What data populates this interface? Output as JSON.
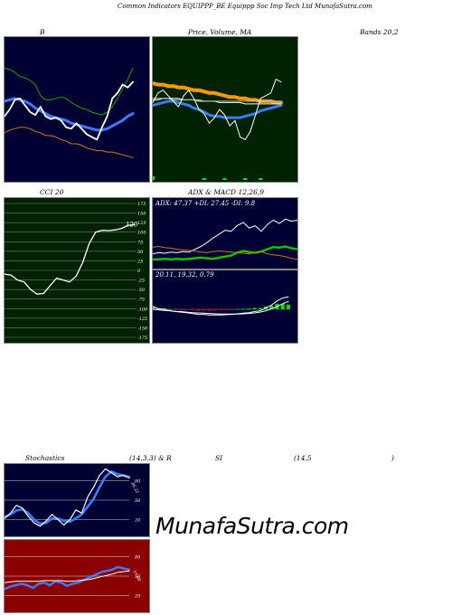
{
  "header": {
    "title": "Common Indicators EQUIPPP_BE Equippp Soc Imp Tech Ltd MunafaSutra.com"
  },
  "labels": {
    "bb": "B",
    "price_ma": "Price, Volume, MA",
    "bands": "Bands 20,2",
    "cci": "CCI 20",
    "adx_macd": "ADX  & MACD 12,26,9",
    "stoch_left": "Stochastics",
    "stoch_mid": "(14,3,3) & R",
    "rsi": "SI",
    "rsi_params": "(14,5",
    "rsi_close": ")"
  },
  "brand": "MunafaSutra.com",
  "colors": {
    "navy_bg": "#000033",
    "green_bg": "#002200",
    "olive_bg": "#002200",
    "red_bg": "#8b0000",
    "blue": "#3a7cff",
    "green": "#00cc00",
    "orange": "#c87820",
    "white": "#ffffff",
    "grid": "#7a7a7a"
  },
  "chart_data": [
    {
      "id": "bollinger",
      "type": "line",
      "ylim": [
        0,
        100
      ],
      "series": [
        {
          "role": "upper",
          "color": "#00aa00",
          "values": [
            80,
            79,
            77,
            74,
            73,
            71,
            68,
            60,
            57,
            57,
            58,
            59,
            58,
            55,
            53,
            51,
            50,
            48,
            47,
            46,
            48,
            52,
            58,
            65,
            72,
            80
          ]
        },
        {
          "role": "middle",
          "color": "#3a7cff",
          "values": [
            56,
            57,
            58,
            57,
            56,
            54,
            51,
            49,
            47,
            45,
            44,
            43,
            42,
            40,
            39,
            38,
            37,
            36,
            35,
            35,
            36,
            38,
            40,
            42,
            45,
            47
          ]
        },
        {
          "role": "lower",
          "color": "#c87820",
          "values": [
            33,
            35,
            36,
            37,
            37,
            36,
            34,
            33,
            31,
            31,
            30,
            28,
            27,
            25,
            25,
            24,
            22,
            21,
            20,
            20,
            19,
            19,
            18,
            17,
            16,
            15
          ]
        },
        {
          "role": "price",
          "color": "#ffffff",
          "values": [
            45,
            50,
            57,
            58,
            53,
            48,
            46,
            52,
            45,
            43,
            44,
            42,
            37,
            36,
            40,
            36,
            32,
            30,
            28,
            37,
            45,
            58,
            62,
            68,
            66,
            70
          ]
        }
      ]
    },
    {
      "id": "price_volume_ma",
      "type": "line",
      "ylim": [
        0,
        100
      ],
      "series": [
        {
          "role": "ma_orange",
          "color": "#ff9900",
          "values": [
            69,
            68,
            68,
            67,
            67,
            66,
            66,
            65,
            64,
            64,
            63,
            62,
            62,
            61,
            60,
            59,
            59,
            58,
            58,
            57,
            57,
            56,
            56,
            56,
            55,
            55
          ]
        },
        {
          "role": "ma_blue",
          "color": "#3a7cff",
          "values": [
            53,
            54,
            55,
            56,
            56,
            55,
            54,
            53,
            51,
            50,
            48,
            46,
            45,
            45,
            44,
            44,
            44,
            44,
            45,
            46,
            47,
            49,
            50,
            51,
            52,
            53
          ]
        },
        {
          "role": "ma_white",
          "color": "#ffffff",
          "values": [
            57,
            57,
            58,
            58,
            58,
            58,
            57,
            57,
            57,
            56,
            56,
            56,
            56,
            55,
            55,
            55,
            55,
            55,
            54,
            54,
            54,
            54,
            54,
            54,
            54,
            54
          ]
        },
        {
          "role": "ma_gray",
          "color": "#bbbbbb",
          "values": [
            58,
            58,
            58,
            58,
            57,
            57,
            57,
            57,
            57,
            57,
            56,
            56,
            56,
            56,
            56,
            56,
            56,
            56,
            56,
            56,
            56,
            56,
            56,
            56,
            56,
            56
          ]
        },
        {
          "role": "price",
          "color": "#ffffff",
          "values": [
            55,
            62,
            64,
            60,
            56,
            52,
            60,
            64,
            58,
            50,
            47,
            40,
            44,
            50,
            46,
            38,
            42,
            30,
            28,
            34,
            46,
            58,
            60,
            62,
            72,
            70
          ]
        }
      ],
      "volume": [
        2,
        0,
        0,
        0,
        0,
        0,
        0,
        0,
        0,
        0,
        1,
        0,
        0,
        0,
        1,
        0,
        0,
        0,
        1,
        0,
        0,
        1,
        0,
        0,
        0,
        0
      ]
    },
    {
      "id": "cci",
      "type": "line",
      "ylim": [
        -175,
        175
      ],
      "ticks": [
        175,
        150,
        125,
        100,
        75,
        50,
        25,
        0,
        -25,
        -50,
        -75,
        -100,
        -125,
        -150,
        -175
      ],
      "last_value": "120",
      "series": [
        {
          "role": "cci",
          "color": "#ffffff",
          "values": [
            -10,
            -12,
            -25,
            -30,
            -50,
            -62,
            -60,
            -40,
            -20,
            -25,
            -30,
            -15,
            20,
            70,
            100,
            105,
            104,
            106,
            110,
            118,
            120
          ]
        }
      ]
    },
    {
      "id": "adx",
      "type": "line",
      "ylim": [
        0,
        100
      ],
      "readout": "ADX: 47.37  +DI: 27.45  -DI: 9.8",
      "series": [
        {
          "role": "adx",
          "color": "#ffffff",
          "values": [
            20,
            22,
            21,
            23,
            22,
            24,
            23,
            28,
            33,
            40,
            48,
            55,
            62,
            60,
            70,
            76,
            66,
            70,
            60,
            72,
            80,
            74,
            82,
            78,
            80
          ]
        },
        {
          "role": "plus_di",
          "color": "#00cc00",
          "values": [
            10,
            10,
            11,
            10,
            11,
            10,
            11,
            12,
            13,
            12,
            11,
            13,
            15,
            17,
            22,
            25,
            23,
            22,
            24,
            28,
            32,
            31,
            33,
            30,
            28
          ]
        },
        {
          "role": "minus_di",
          "color": "#c87820",
          "values": [
            32,
            33,
            31,
            30,
            28,
            27,
            26,
            25,
            23,
            22,
            24,
            25,
            24,
            23,
            22,
            21,
            20,
            22,
            24,
            20,
            18,
            17,
            15,
            12,
            10
          ]
        }
      ]
    },
    {
      "id": "macd",
      "type": "line",
      "ylim": [
        -1,
        1
      ],
      "readout": "20.11,  19.32,  0.79",
      "series": [
        {
          "role": "macd",
          "color": "#ffffff",
          "values": [
            0.1,
            0.02,
            0.0,
            -0.05,
            -0.08,
            -0.1,
            -0.12,
            -0.15,
            -0.18,
            -0.18,
            -0.2,
            -0.2,
            -0.2,
            -0.19,
            -0.18,
            -0.16,
            -0.14,
            -0.12,
            -0.08,
            -0.05,
            0.05,
            0.15,
            0.3,
            0.4,
            0.45
          ]
        },
        {
          "role": "signal",
          "color": "#ffffff",
          "values": [
            0.0,
            -0.02,
            -0.04,
            -0.05,
            -0.07,
            -0.08,
            -0.1,
            -0.12,
            -0.13,
            -0.14,
            -0.15,
            -0.16,
            -0.17,
            -0.17,
            -0.17,
            -0.17,
            -0.16,
            -0.15,
            -0.13,
            -0.1,
            -0.05,
            0.02,
            0.1,
            0.2,
            0.28
          ]
        },
        {
          "role": "histogram",
          "values": [
            0.1,
            0.04,
            0.04,
            0.0,
            -0.01,
            -0.02,
            -0.02,
            -0.03,
            -0.05,
            -0.04,
            -0.05,
            -0.04,
            -0.03,
            -0.02,
            -0.01,
            0.01,
            0.02,
            0.03,
            0.05,
            0.05,
            0.1,
            0.13,
            0.2,
            0.2,
            0.17
          ]
        }
      ]
    },
    {
      "id": "stochastics",
      "type": "line",
      "ylim": [
        0,
        100
      ],
      "ticks": [
        80,
        50,
        20
      ],
      "last_value": "86.22",
      "series": [
        {
          "role": "k",
          "color": "#ffffff",
          "values": [
            22,
            30,
            42,
            38,
            25,
            15,
            10,
            18,
            28,
            20,
            12,
            20,
            35,
            30,
            55,
            70,
            88,
            98,
            92,
            86,
            88,
            84
          ]
        },
        {
          "role": "d",
          "color": "#3a7cff",
          "values": [
            24,
            28,
            34,
            36,
            30,
            20,
            14,
            15,
            22,
            22,
            18,
            17,
            22,
            28,
            40,
            52,
            70,
            86,
            94,
            90,
            88,
            86
          ]
        }
      ]
    },
    {
      "id": "rsi",
      "type": "line",
      "ylim": [
        0,
        100
      ],
      "ticks": [
        80,
        50,
        20
      ],
      "last_value": "57.08",
      "series": [
        {
          "role": "rsi",
          "color": "#3a7cff",
          "values": [
            30,
            34,
            36,
            38,
            36,
            32,
            38,
            40,
            36,
            42,
            40,
            35,
            38,
            40,
            44,
            48,
            52,
            56,
            58,
            60,
            64,
            62,
            60
          ]
        },
        {
          "role": "rsi_ma",
          "color": "#ffffff",
          "values": [
            40,
            41,
            42,
            42,
            42,
            42,
            42,
            43,
            43,
            43,
            43,
            42,
            42,
            43,
            44,
            45,
            47,
            49,
            51,
            53,
            56,
            57,
            58
          ]
        }
      ]
    }
  ]
}
